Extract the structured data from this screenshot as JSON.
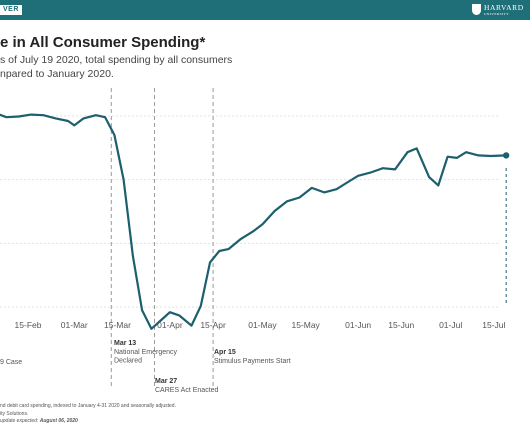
{
  "header": {
    "badge": "VER",
    "brand": "HARVARD",
    "brand_sub": "UNIVERSITY",
    "bar_color": "#1f6f78"
  },
  "title": "e in All Consumer Spending*",
  "subtitle_lines": [
    "s of July 19 2020, total spending by all consumers",
    "npared to January 2020."
  ],
  "footnotes": {
    "line1": "nd debit card spending, indexed to January 4-31 2020 and seasonally adjusted.",
    "line2": "ity Solutions.",
    "updated_prefix": "update expected: ",
    "updated_date": "August 06, 2020"
  },
  "chart_data": {
    "type": "line",
    "line_color": "#1c5f6e",
    "x_tick_labels": [
      "15-Feb",
      "01-Mar",
      "15-Mar",
      "01-Apr",
      "15-Apr",
      "01-May",
      "15-May",
      "01-Jun",
      "15-Jun",
      "01-Jul",
      "15-Jul"
    ],
    "ylim": [
      -35,
      5
    ],
    "y_gridlines": [
      0,
      -10,
      -20,
      -30
    ],
    "grid": true,
    "x": [
      "2020-01-31",
      "2020-02-04",
      "2020-02-08",
      "2020-02-12",
      "2020-02-16",
      "2020-02-20",
      "2020-02-24",
      "2020-02-28",
      "2020-03-01",
      "2020-03-04",
      "2020-03-08",
      "2020-03-11",
      "2020-03-14",
      "2020-03-17",
      "2020-03-20",
      "2020-03-23",
      "2020-03-26",
      "2020-03-29",
      "2020-04-01",
      "2020-04-04",
      "2020-04-08",
      "2020-04-11",
      "2020-04-14",
      "2020-04-17",
      "2020-04-20",
      "2020-04-24",
      "2020-04-28",
      "2020-05-01",
      "2020-05-05",
      "2020-05-09",
      "2020-05-13",
      "2020-05-17",
      "2020-05-21",
      "2020-05-25",
      "2020-05-29",
      "2020-06-01",
      "2020-06-05",
      "2020-06-09",
      "2020-06-13",
      "2020-06-17",
      "2020-06-20",
      "2020-06-24",
      "2020-06-27",
      "2020-06-30",
      "2020-07-03",
      "2020-07-06",
      "2020-07-10",
      "2020-07-14",
      "2020-07-19"
    ],
    "values": [
      0.2,
      0.5,
      -0.2,
      -0.1,
      0.2,
      0.1,
      -0.4,
      -0.8,
      -1.5,
      -0.4,
      0.1,
      -0.2,
      -3.0,
      -10.0,
      -22.0,
      -30.5,
      -33.4,
      -32.1,
      -30.8,
      -31.3,
      -32.9,
      -29.8,
      -23.0,
      -21.2,
      -20.9,
      -19.3,
      -18.1,
      -17.0,
      -14.9,
      -13.4,
      -12.8,
      -11.3,
      -12.0,
      -11.5,
      -10.3,
      -9.4,
      -8.9,
      -8.2,
      -8.4,
      -5.7,
      -5.1,
      -9.6,
      -10.9,
      -6.4,
      -6.6,
      -5.7,
      -6.2,
      -6.3,
      -6.2
    ],
    "vertical_markers": [
      {
        "x": "2020-03-13",
        "dashed": true
      },
      {
        "x": "2020-03-27",
        "dashed": true
      },
      {
        "x": "2020-04-15",
        "dashed": true
      },
      {
        "x": "2020-07-19",
        "dashed": true,
        "emphasis": true
      }
    ],
    "annotations": [
      {
        "date": "",
        "text": "9 Case"
      },
      {
        "date": "Mar 13",
        "text": "National Emergency",
        "text2": "Declared"
      },
      {
        "date": "Mar 27",
        "text": "CARES Act Enacted"
      },
      {
        "date": "Apr 15",
        "text": "Stimulus Payments Start"
      }
    ]
  }
}
